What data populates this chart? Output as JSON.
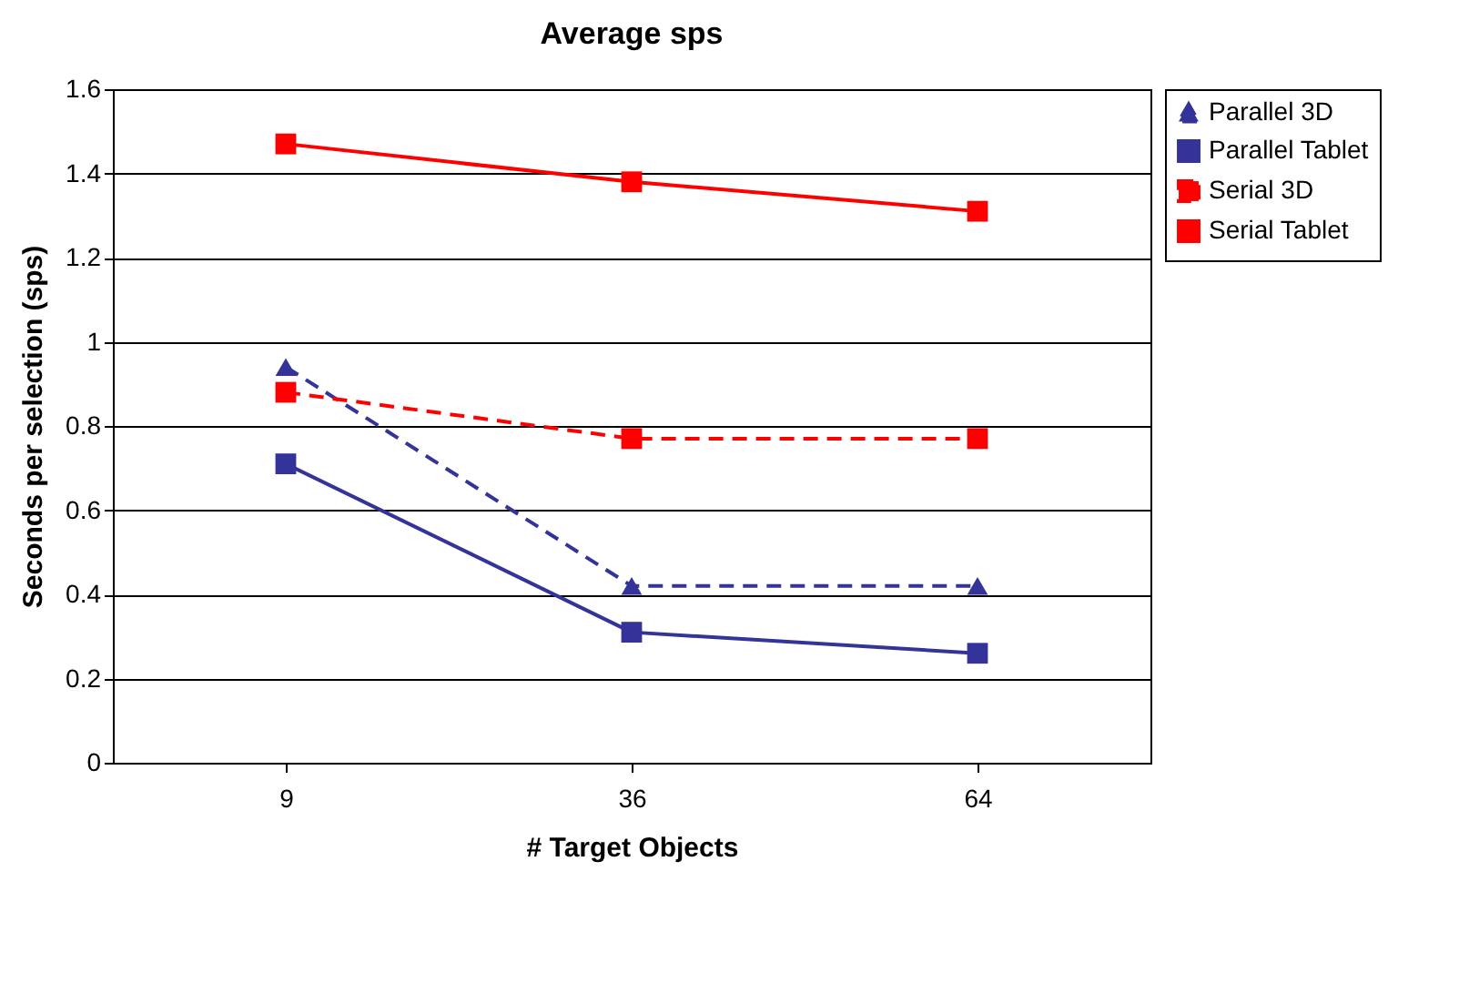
{
  "chart_data": {
    "type": "line",
    "title": "Average sps",
    "xlabel": "# Target Objects",
    "ylabel": "Seconds per selection (sps)",
    "categories": [
      "9",
      "36",
      "64"
    ],
    "series": [
      {
        "name": "Parallel 3D",
        "color": "#333399",
        "marker": "triangle",
        "line_style": "dashed",
        "values": [
          0.94,
          0.42,
          0.42
        ]
      },
      {
        "name": "Parallel Tablet",
        "color": "#333399",
        "marker": "square",
        "line_style": "solid",
        "values": [
          0.71,
          0.31,
          0.26
        ]
      },
      {
        "name": "Serial 3D",
        "color": "#ff0000",
        "marker": "square",
        "line_style": "dashed",
        "values": [
          0.88,
          0.77,
          0.77
        ]
      },
      {
        "name": "Serial Tablet",
        "color": "#ff0000",
        "marker": "square",
        "line_style": "solid",
        "values": [
          1.47,
          1.38,
          1.31
        ]
      }
    ],
    "ylim": [
      0,
      1.6
    ],
    "yticks": [
      0,
      0.2,
      0.4,
      0.6,
      0.8,
      1,
      1.2,
      1.4,
      1.6
    ],
    "grid": "y",
    "legend": "top right"
  }
}
